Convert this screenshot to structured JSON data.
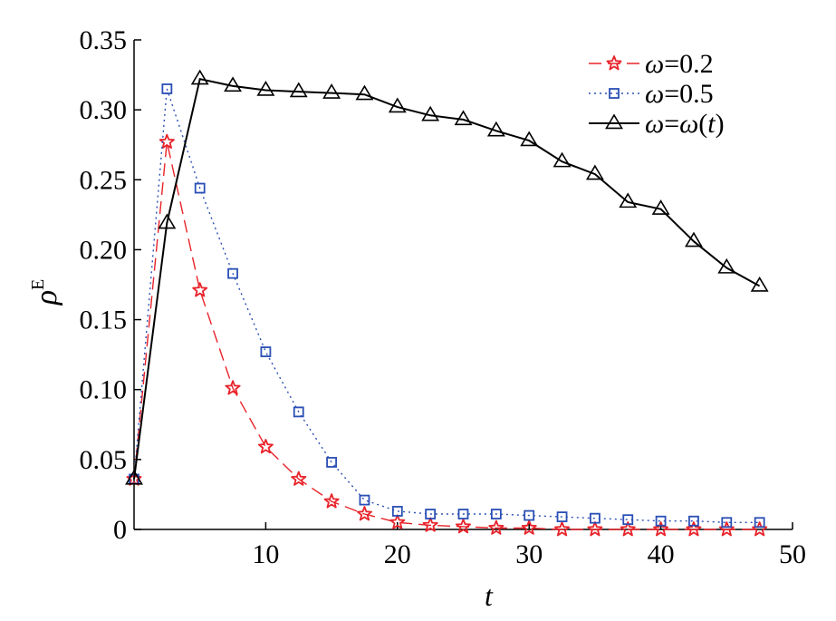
{
  "chart_data": {
    "type": "line",
    "title": "",
    "xlabel": "t",
    "ylabel": "ρ",
    "ylabel_superscript": "E",
    "xlim": [
      0,
      50
    ],
    "ylim": [
      0,
      0.35
    ],
    "xticks": [
      10,
      20,
      30,
      40,
      50
    ],
    "xtick_labels": [
      "10",
      "20",
      "30",
      "40",
      "50"
    ],
    "yticks": [
      0,
      0.05,
      0.1,
      0.15,
      0.2,
      0.25,
      0.3,
      0.35
    ],
    "ytick_labels": [
      "0",
      "0.05",
      "0.10",
      "0.15",
      "0.20",
      "0.25",
      "0.30",
      "0.35"
    ],
    "grid": false,
    "legend_position": "top-right",
    "series": [
      {
        "name": "ω=0.2",
        "legend_label": [
          "ω",
          "=0.2"
        ],
        "color": "#e8232a",
        "line_style": "dashed",
        "marker": "star",
        "x": [
          0,
          2.5,
          5,
          7.5,
          10,
          12.5,
          15,
          17.5,
          20,
          22.5,
          25,
          27.5,
          30,
          32.5,
          35,
          37.5,
          40,
          42.5,
          45,
          47.5
        ],
        "y": [
          0.036,
          0.277,
          0.171,
          0.101,
          0.059,
          0.036,
          0.02,
          0.011,
          0.005,
          0.003,
          0.002,
          0.001,
          0.001,
          0.0,
          0.0,
          0.0,
          0.0,
          0.0,
          0.0,
          0.0
        ]
      },
      {
        "name": "ω=0.5",
        "legend_label": [
          "ω",
          "=0.5"
        ],
        "color": "#2a4fb5",
        "line_style": "dotted",
        "marker": "square",
        "x": [
          0,
          2.5,
          5,
          7.5,
          10,
          12.5,
          15,
          17.5,
          20,
          22.5,
          25,
          27.5,
          30,
          32.5,
          35,
          37.5,
          40,
          42.5,
          45,
          47.5
        ],
        "y": [
          0.036,
          0.315,
          0.244,
          0.183,
          0.127,
          0.084,
          0.048,
          0.021,
          0.013,
          0.011,
          0.011,
          0.011,
          0.01,
          0.009,
          0.008,
          0.007,
          0.006,
          0.006,
          0.005,
          0.005
        ]
      },
      {
        "name": "ω=ω(t)",
        "legend_label": [
          "ω",
          "=",
          "ω",
          "(",
          "t",
          ")"
        ],
        "color": "#000000",
        "line_style": "solid",
        "marker": "triangle",
        "x": [
          0,
          2.5,
          5,
          7.5,
          10,
          12.5,
          15,
          17.5,
          20,
          22.5,
          25,
          27.5,
          30,
          32.5,
          35,
          37.5,
          40,
          42.5,
          45,
          47.5
        ],
        "y": [
          0.036,
          0.219,
          0.322,
          0.317,
          0.314,
          0.313,
          0.312,
          0.311,
          0.302,
          0.296,
          0.293,
          0.285,
          0.278,
          0.263,
          0.254,
          0.234,
          0.229,
          0.206,
          0.187,
          0.174
        ]
      }
    ]
  }
}
